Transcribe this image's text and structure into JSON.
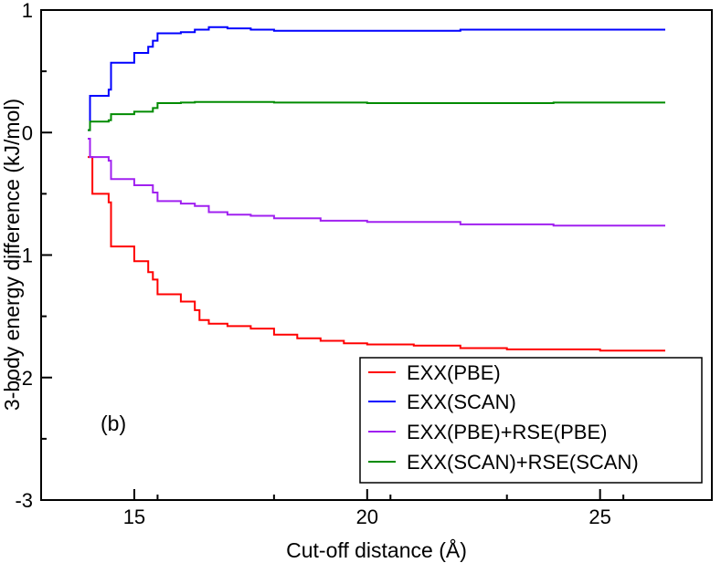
{
  "chart_data": {
    "type": "line",
    "xlabel": "Cut-off distance (Å)",
    "ylabel": "3-body energy difference (kJ/mol)",
    "xlim": [
      13.0,
      27.4
    ],
    "ylim": [
      -3,
      1
    ],
    "x_ticks": [
      15,
      20,
      25
    ],
    "y_ticks": [
      -3,
      -2,
      -1,
      0,
      1
    ],
    "x_tick_labels": [
      "15",
      "20",
      "25"
    ],
    "y_tick_labels": [
      "-3",
      "-2",
      "-1",
      "0",
      "1"
    ],
    "annotation": "(b)",
    "grid": false,
    "legend_position": "bottom-right",
    "series": [
      {
        "name": "EXX(PBE)",
        "color": "#ff0000",
        "step": true,
        "x": [
          14.0,
          14.1,
          14.45,
          14.5,
          15.0,
          15.3,
          15.4,
          15.5,
          16.0,
          16.3,
          16.4,
          16.6,
          17.0,
          17.5,
          18.0,
          18.5,
          19.0,
          19.5,
          20.0,
          21.0,
          22.0,
          23.0,
          24.0,
          25.0,
          26.4
        ],
        "values": [
          -0.2,
          -0.5,
          -0.57,
          -0.93,
          -1.05,
          -1.14,
          -1.2,
          -1.32,
          -1.38,
          -1.45,
          -1.53,
          -1.56,
          -1.58,
          -1.6,
          -1.65,
          -1.68,
          -1.7,
          -1.72,
          -1.73,
          -1.74,
          -1.76,
          -1.77,
          -1.77,
          -1.78,
          -1.78
        ]
      },
      {
        "name": "EXX(SCAN)",
        "color": "#0000ff",
        "step": true,
        "x": [
          14.0,
          14.05,
          14.45,
          14.5,
          15.0,
          15.3,
          15.4,
          15.5,
          16.0,
          16.3,
          16.6,
          17.0,
          17.5,
          18.0,
          19.0,
          20.0,
          22.0,
          24.0,
          26.4
        ],
        "values": [
          0.02,
          0.3,
          0.35,
          0.57,
          0.65,
          0.7,
          0.75,
          0.81,
          0.82,
          0.84,
          0.86,
          0.85,
          0.84,
          0.83,
          0.83,
          0.83,
          0.84,
          0.84,
          0.84
        ]
      },
      {
        "name": "EXX(PBE)+RSE(PBE)",
        "color": "#a020f0",
        "step": true,
        "x": [
          14.0,
          14.05,
          14.45,
          14.5,
          15.0,
          15.4,
          15.5,
          16.0,
          16.3,
          16.6,
          17.0,
          17.5,
          18.0,
          19.0,
          20.0,
          22.0,
          24.0,
          26.4
        ],
        "values": [
          -0.05,
          -0.2,
          -0.23,
          -0.38,
          -0.43,
          -0.49,
          -0.56,
          -0.58,
          -0.6,
          -0.65,
          -0.67,
          -0.68,
          -0.7,
          -0.72,
          -0.73,
          -0.75,
          -0.76,
          -0.76
        ]
      },
      {
        "name": "EXX(SCAN)+RSE(SCAN)",
        "color": "#008b00",
        "step": true,
        "x": [
          14.0,
          14.05,
          14.45,
          14.5,
          15.0,
          15.4,
          15.5,
          16.0,
          16.3,
          17.0,
          18.0,
          20.0,
          22.0,
          24.0,
          26.4
        ],
        "values": [
          0.02,
          0.09,
          0.1,
          0.15,
          0.17,
          0.2,
          0.24,
          0.245,
          0.25,
          0.25,
          0.245,
          0.24,
          0.24,
          0.245,
          0.245
        ]
      }
    ]
  }
}
